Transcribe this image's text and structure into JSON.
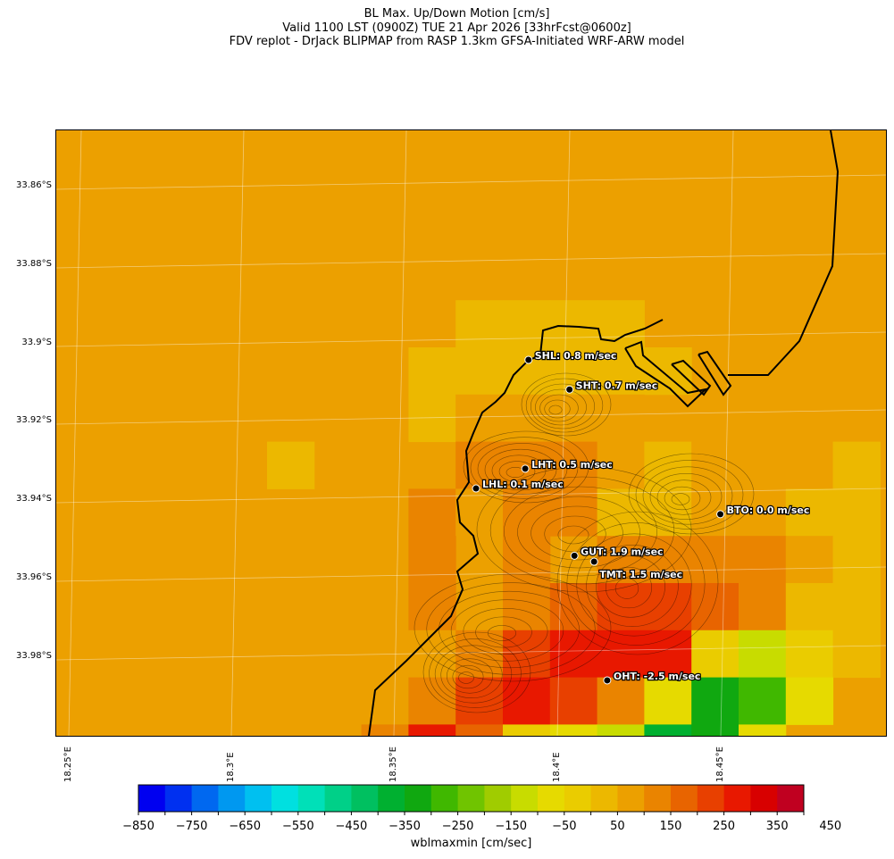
{
  "header": {
    "title_line1": "BL Max. Up/Down Motion [cm/s]",
    "title_line2": "Valid 1100 LST (0900Z) TUE 21 Apr 2026 [33hrFcst@0600z]",
    "title_line3": "FDV replot - DrJack BLIPMAP from RASP 1.3km GFSA-Initiated WRF-ARW model"
  },
  "axes": {
    "lat_ticks": [
      "33.86°S",
      "33.88°S",
      "33.9°S",
      "33.92°S",
      "33.94°S",
      "33.96°S",
      "33.98°S"
    ],
    "lon_ticks": [
      "18.25°E",
      "18.3°E",
      "18.35°E",
      "18.4°E",
      "18.45°E"
    ]
  },
  "stations": [
    {
      "id": "SHL",
      "label": "SHL: 0.8 m/sec",
      "lat": -33.908,
      "lon": 18.391
    },
    {
      "id": "SHT",
      "label": "SHT: 0.7 m/sec",
      "lat": -33.9155,
      "lon": 18.4035
    },
    {
      "id": "LHT",
      "label": "LHT: 0.5 m/sec",
      "lat": -33.9355,
      "lon": 18.39
    },
    {
      "id": "LHL",
      "label": "LHL: 0.1 m/sec",
      "lat": -33.9405,
      "lon": 18.375
    },
    {
      "id": "BTO",
      "label": "BTO: 0.0 m/sec",
      "lat": -33.947,
      "lon": 18.4495
    },
    {
      "id": "GUT",
      "label": "GUT: 1.9 m/sec",
      "lat": -33.9575,
      "lon": 18.405
    },
    {
      "id": "TMT",
      "label": "TMT: 1.5 m/sec",
      "lat": -33.959,
      "lon": 18.411
    },
    {
      "id": "OHT",
      "label": "OHT: -2.5 m/sec",
      "lat": -33.989,
      "lon": 18.415
    }
  ],
  "colorbar": {
    "label": "wblmaxmin [cm/sec]",
    "tick_labels": [
      "−850",
      "−750",
      "−650",
      "−550",
      "−450",
      "−350",
      "−250",
      "−150",
      "−50",
      "50",
      "150",
      "250",
      "350",
      "450"
    ],
    "colors": [
      "#0000f0",
      "#0030f0",
      "#0068f0",
      "#0098f0",
      "#00c0f0",
      "#00e0e0",
      "#00e0b8",
      "#00d088",
      "#00c060",
      "#00b030",
      "#10a810",
      "#40b800",
      "#70c400",
      "#a0cc00",
      "#c8dc00",
      "#e6da00",
      "#eacc00",
      "#ecb800",
      "#eca000",
      "#ea8400",
      "#e86400",
      "#e84000",
      "#e81800",
      "#d80000",
      "#c00020"
    ],
    "range": [
      -850,
      500
    ]
  },
  "field": {
    "base_value": 80,
    "cells": [
      [
        0,
        19,
        130
      ],
      [
        4,
        9,
        20
      ],
      [
        4,
        10,
        20
      ],
      [
        4,
        11,
        20
      ],
      [
        4,
        12,
        20
      ],
      [
        5,
        8,
        20
      ],
      [
        5,
        9,
        20
      ],
      [
        5,
        10,
        20
      ],
      [
        5,
        11,
        20
      ],
      [
        5,
        12,
        20
      ],
      [
        5,
        13,
        20
      ],
      [
        6,
        8,
        0
      ],
      [
        6,
        9,
        80
      ],
      [
        6,
        10,
        80
      ],
      [
        6,
        11,
        80
      ],
      [
        6,
        12,
        80
      ],
      [
        7,
        5,
        20
      ],
      [
        7,
        9,
        130
      ],
      [
        7,
        10,
        130
      ],
      [
        7,
        11,
        130
      ],
      [
        7,
        12,
        80
      ],
      [
        7,
        13,
        20
      ],
      [
        7,
        14,
        80
      ],
      [
        7,
        15,
        80
      ],
      [
        7,
        16,
        80
      ],
      [
        7,
        17,
        20
      ],
      [
        8,
        8,
        130
      ],
      [
        8,
        9,
        80
      ],
      [
        8,
        10,
        130
      ],
      [
        8,
        11,
        130
      ],
      [
        8,
        12,
        20
      ],
      [
        8,
        13,
        20
      ],
      [
        8,
        14,
        80
      ],
      [
        8,
        15,
        80
      ],
      [
        8,
        16,
        20
      ],
      [
        8,
        17,
        20
      ],
      [
        9,
        8,
        130
      ],
      [
        9,
        10,
        130
      ],
      [
        9,
        12,
        130
      ],
      [
        9,
        13,
        130
      ],
      [
        9,
        14,
        130
      ],
      [
        9,
        15,
        130
      ],
      [
        9,
        16,
        80
      ],
      [
        9,
        17,
        20
      ],
      [
        10,
        8,
        130
      ],
      [
        10,
        10,
        130
      ],
      [
        10,
        11,
        180
      ],
      [
        10,
        12,
        230
      ],
      [
        10,
        13,
        230
      ],
      [
        10,
        14,
        180
      ],
      [
        10,
        15,
        130
      ],
      [
        10,
        16,
        20
      ],
      [
        10,
        17,
        20
      ],
      [
        11,
        8,
        80
      ],
      [
        11,
        9,
        130
      ],
      [
        11,
        10,
        230
      ],
      [
        11,
        11,
        280
      ],
      [
        11,
        12,
        280
      ],
      [
        11,
        13,
        280
      ],
      [
        11,
        14,
        -20
      ],
      [
        11,
        15,
        -120
      ],
      [
        11,
        16,
        -20
      ],
      [
        11,
        17,
        20
      ],
      [
        12,
        8,
        130
      ],
      [
        12,
        9,
        230
      ],
      [
        12,
        10,
        280
      ],
      [
        12,
        11,
        230
      ],
      [
        12,
        12,
        130
      ],
      [
        12,
        13,
        -70
      ],
      [
        12,
        14,
        -320
      ],
      [
        12,
        15,
        -270
      ],
      [
        12,
        16,
        -70
      ],
      [
        13,
        7,
        130
      ],
      [
        13,
        8,
        280
      ],
      [
        13,
        9,
        180
      ],
      [
        13,
        10,
        -20
      ],
      [
        13,
        11,
        -70
      ],
      [
        13,
        12,
        -120
      ],
      [
        13,
        13,
        -370
      ],
      [
        13,
        14,
        -320
      ],
      [
        13,
        15,
        -70
      ],
      [
        14,
        6,
        130
      ],
      [
        14,
        7,
        180
      ],
      [
        14,
        8,
        -120
      ],
      [
        14,
        9,
        -50
      ],
      [
        14,
        10,
        -120
      ],
      [
        14,
        11,
        -270
      ],
      [
        14,
        12,
        -320
      ],
      [
        14,
        13,
        20
      ],
      [
        15,
        8,
        -120
      ],
      [
        15,
        9,
        -120
      ],
      [
        15,
        10,
        -70
      ],
      [
        15,
        11,
        -170
      ],
      [
        15,
        12,
        -120
      ],
      [
        15,
        13,
        80
      ],
      [
        14,
        0,
        20
      ]
    ]
  },
  "land_mask_note": "",
  "map_bounds": {
    "lat_top": -33.85,
    "lat_bottom": -34.003,
    "lon_left": 18.247,
    "lon_right": 18.5
  }
}
